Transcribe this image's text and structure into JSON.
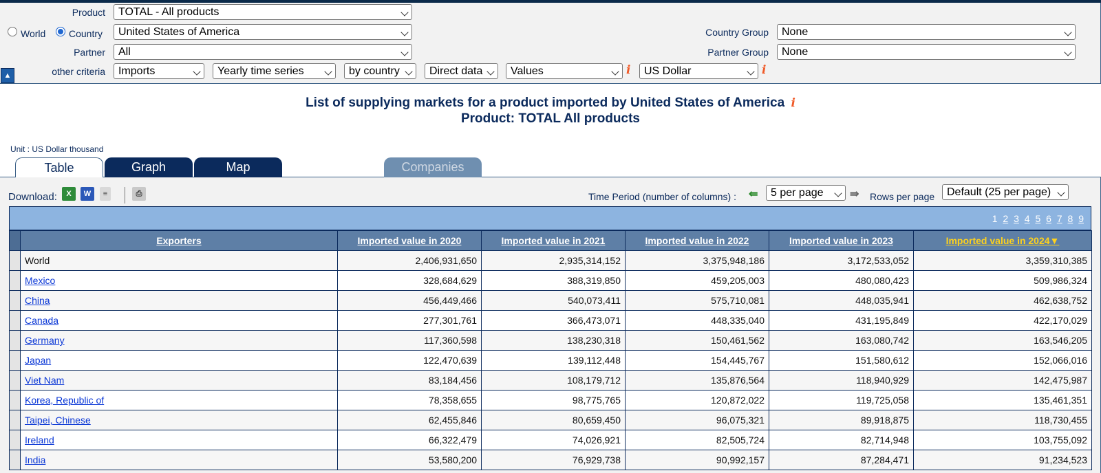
{
  "criteria": {
    "product_label": "Product",
    "product_value": "TOTAL - All products",
    "world_label": "World",
    "country_label": "Country",
    "country_value": "United States of America",
    "partner_label": "Partner",
    "partner_value": "All",
    "other_label": "other criteria",
    "flow_value": "Imports",
    "series_value": "Yearly time series",
    "by_value": "by country",
    "data_value": "Direct data",
    "measure_value": "Values",
    "currency_value": "US Dollar",
    "country_group_label": "Country Group",
    "country_group_value": "None",
    "partner_group_label": "Partner Group",
    "partner_group_value": "None",
    "info_glyph": "i"
  },
  "title_line1": "List of supplying markets for a product imported by United States of America",
  "title_line2": "Product: TOTAL All products",
  "unit": "Unit : US Dollar thousand",
  "tabs": [
    {
      "label": "Table"
    },
    {
      "label": "Graph"
    },
    {
      "label": "Map"
    },
    {
      "label": "Companies"
    }
  ],
  "toolbar": {
    "download_label": "Download:",
    "time_period_label": "Time Period (number of columns) :",
    "per_page_value": "5 per page",
    "rows_label": "Rows per page",
    "rows_value": "Default (25 per page)"
  },
  "pager": [
    "1",
    "2",
    "3",
    "4",
    "5",
    "6",
    "7",
    "8",
    "9"
  ],
  "table": {
    "headers": [
      "Exporters",
      "Imported value in 2020",
      "Imported value in 2021",
      "Imported value in 2022",
      "Imported value in 2023",
      "Imported value in 2024"
    ],
    "sort_glyph": "▼",
    "rows": [
      {
        "name": "World",
        "link": false,
        "v": [
          "2,406,931,650",
          "2,935,314,152",
          "3,375,948,186",
          "3,172,533,052",
          "3,359,310,385"
        ]
      },
      {
        "name": "Mexico",
        "link": true,
        "v": [
          "328,684,629",
          "388,319,850",
          "459,205,003",
          "480,080,423",
          "509,986,324"
        ]
      },
      {
        "name": "China",
        "link": true,
        "v": [
          "456,449,466",
          "540,073,411",
          "575,710,081",
          "448,035,941",
          "462,638,752"
        ]
      },
      {
        "name": "Canada",
        "link": true,
        "v": [
          "277,301,761",
          "366,473,071",
          "448,335,040",
          "431,195,849",
          "422,170,029"
        ]
      },
      {
        "name": "Germany",
        "link": true,
        "v": [
          "117,360,598",
          "138,230,318",
          "150,461,562",
          "163,080,742",
          "163,546,205"
        ]
      },
      {
        "name": "Japan",
        "link": true,
        "v": [
          "122,470,639",
          "139,112,448",
          "154,445,767",
          "151,580,612",
          "152,066,016"
        ]
      },
      {
        "name": "Viet Nam",
        "link": true,
        "v": [
          "83,184,456",
          "108,179,712",
          "135,876,564",
          "118,940,929",
          "142,475,987"
        ]
      },
      {
        "name": "Korea, Republic of",
        "link": true,
        "v": [
          "78,358,655",
          "98,775,765",
          "120,872,022",
          "119,725,058",
          "135,461,351"
        ]
      },
      {
        "name": "Taipei, Chinese",
        "link": true,
        "v": [
          "62,455,846",
          "80,659,450",
          "96,075,321",
          "89,918,875",
          "118,730,455"
        ]
      },
      {
        "name": "Ireland",
        "link": true,
        "v": [
          "66,322,479",
          "74,026,921",
          "82,505,724",
          "82,714,948",
          "103,755,092"
        ]
      },
      {
        "name": "India",
        "link": true,
        "v": [
          "53,580,200",
          "76,929,738",
          "90,992,157",
          "87,284,471",
          "91,234,523"
        ]
      }
    ]
  },
  "icons": {
    "excel": "excel-icon",
    "word": "word-icon",
    "text": "text-file-icon",
    "print": "printer-icon",
    "prev": "arrow-left-icon",
    "next": "arrow-right-icon"
  },
  "colors": {
    "navy": "#0b2a5c",
    "header": "#5e7fa6",
    "pager_bar": "#8db4e0",
    "info": "#f05a28",
    "sorted": "#ffd21c",
    "link": "#0a37d6"
  }
}
